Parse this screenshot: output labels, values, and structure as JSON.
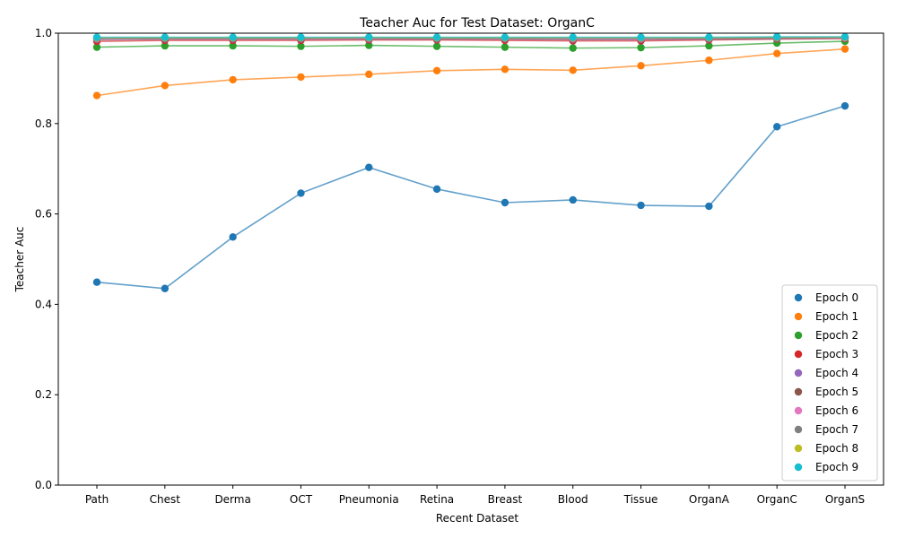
{
  "chart_data": {
    "type": "line",
    "title": "Teacher Auc for Test Dataset: OrganC",
    "xlabel": "Recent Dataset",
    "ylabel": "Teacher Auc",
    "ylim": [
      0.0,
      1.0
    ],
    "yticks": [
      "0.0",
      "0.2",
      "0.4",
      "0.6",
      "0.8",
      "1.0"
    ],
    "categories": [
      "Path",
      "Chest",
      "Derma",
      "OCT",
      "Pneumonia",
      "Retina",
      "Breast",
      "Blood",
      "Tissue",
      "OrganA",
      "OrganC",
      "OrganS"
    ],
    "grid": false,
    "legend_position": "bottom-right",
    "series": [
      {
        "name": "Epoch 0",
        "color": "#1f77b4",
        "values": [
          0.449,
          0.435,
          0.549,
          0.646,
          0.703,
          0.655,
          0.625,
          0.631,
          0.619,
          0.617,
          0.793,
          0.839
        ]
      },
      {
        "name": "Epoch 1",
        "color": "#ff7f0e",
        "values": [
          0.862,
          0.884,
          0.897,
          0.903,
          0.909,
          0.917,
          0.92,
          0.918,
          0.928,
          0.94,
          0.955,
          0.965
        ]
      },
      {
        "name": "Epoch 2",
        "color": "#2ca02c",
        "values": [
          0.969,
          0.972,
          0.972,
          0.971,
          0.973,
          0.971,
          0.969,
          0.967,
          0.968,
          0.972,
          0.978,
          0.982
        ]
      },
      {
        "name": "Epoch 3",
        "color": "#d62728",
        "values": [
          0.982,
          0.984,
          0.984,
          0.984,
          0.985,
          0.985,
          0.984,
          0.983,
          0.983,
          0.985,
          0.987,
          0.988
        ]
      },
      {
        "name": "Epoch 4",
        "color": "#9467bd",
        "values": [
          0.986,
          0.987,
          0.987,
          0.987,
          0.987,
          0.987,
          0.987,
          0.986,
          0.986,
          0.987,
          0.988,
          0.989
        ]
      },
      {
        "name": "Epoch 5",
        "color": "#8c564b",
        "values": [
          0.987,
          0.988,
          0.988,
          0.988,
          0.988,
          0.988,
          0.988,
          0.987,
          0.987,
          0.988,
          0.989,
          0.99
        ]
      },
      {
        "name": "Epoch 6",
        "color": "#e377c2",
        "values": [
          0.988,
          0.989,
          0.989,
          0.989,
          0.989,
          0.989,
          0.989,
          0.988,
          0.988,
          0.989,
          0.99,
          0.99
        ]
      },
      {
        "name": "Epoch 7",
        "color": "#7f7f7f",
        "values": [
          0.989,
          0.989,
          0.989,
          0.989,
          0.99,
          0.989,
          0.989,
          0.989,
          0.989,
          0.989,
          0.99,
          0.991
        ]
      },
      {
        "name": "Epoch 8",
        "color": "#bcbd22",
        "values": [
          0.99,
          0.99,
          0.99,
          0.99,
          0.99,
          0.99,
          0.99,
          0.99,
          0.99,
          0.99,
          0.991,
          0.991
        ]
      },
      {
        "name": "Epoch 9",
        "color": "#17becf",
        "values": [
          0.991,
          0.991,
          0.991,
          0.991,
          0.991,
          0.991,
          0.991,
          0.991,
          0.991,
          0.991,
          0.992,
          0.992
        ]
      }
    ]
  }
}
